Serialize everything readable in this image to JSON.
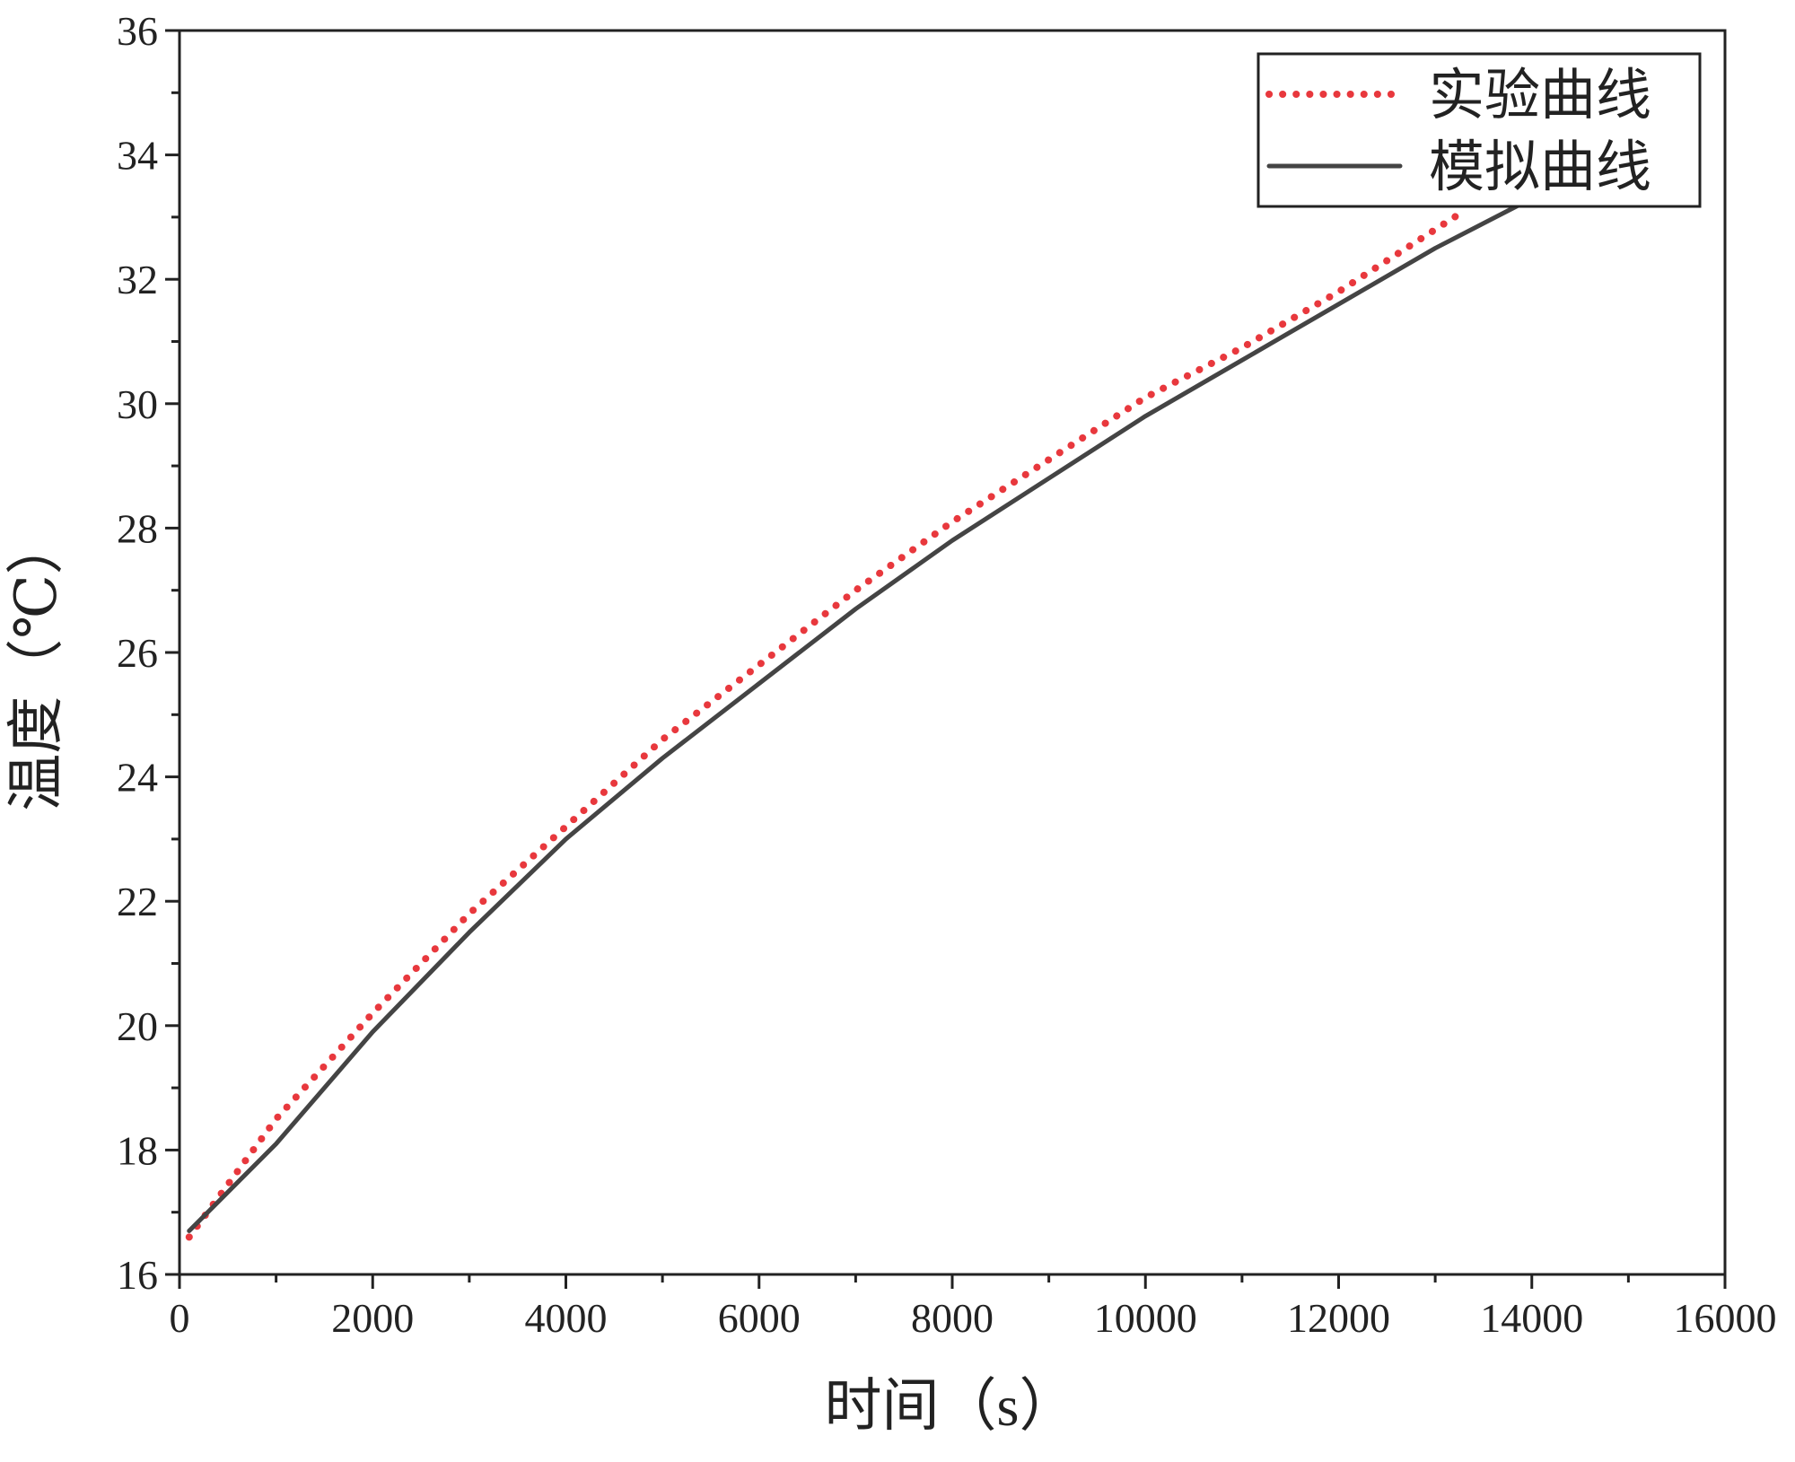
{
  "chart_data": {
    "type": "line",
    "x_label": "时间（s）",
    "y_label": "温度（℃）",
    "xlim": [
      0,
      16000
    ],
    "xticks": [
      0,
      2000,
      4000,
      6000,
      8000,
      10000,
      12000,
      14000,
      16000
    ],
    "ylim": [
      16,
      36
    ],
    "yticks": [
      16,
      18,
      20,
      22,
      24,
      26,
      28,
      30,
      32,
      34,
      36
    ],
    "legend": "top-right",
    "series": [
      {
        "name": "实验曲线",
        "color": "#e8383d",
        "style": "dotted",
        "x": [
          100,
          1000,
          2000,
          3000,
          4000,
          5000,
          6000,
          7000,
          8000,
          9000,
          10000,
          11000,
          12000,
          13000,
          13300
        ],
        "values": [
          16.6,
          18.5,
          20.2,
          21.8,
          23.2,
          24.6,
          25.8,
          27.0,
          28.1,
          29.1,
          30.1,
          30.9,
          31.8,
          32.8,
          33.1
        ]
      },
      {
        "name": "模拟曲线",
        "color": "#444444",
        "style": "solid",
        "x": [
          100,
          1000,
          2000,
          3000,
          4000,
          5000,
          6000,
          7000,
          8000,
          9000,
          10000,
          11000,
          12000,
          13000,
          14000
        ],
        "values": [
          16.7,
          18.1,
          19.9,
          21.5,
          23.0,
          24.3,
          25.5,
          26.7,
          27.8,
          28.8,
          29.8,
          30.7,
          31.6,
          32.5,
          33.3
        ]
      }
    ]
  }
}
